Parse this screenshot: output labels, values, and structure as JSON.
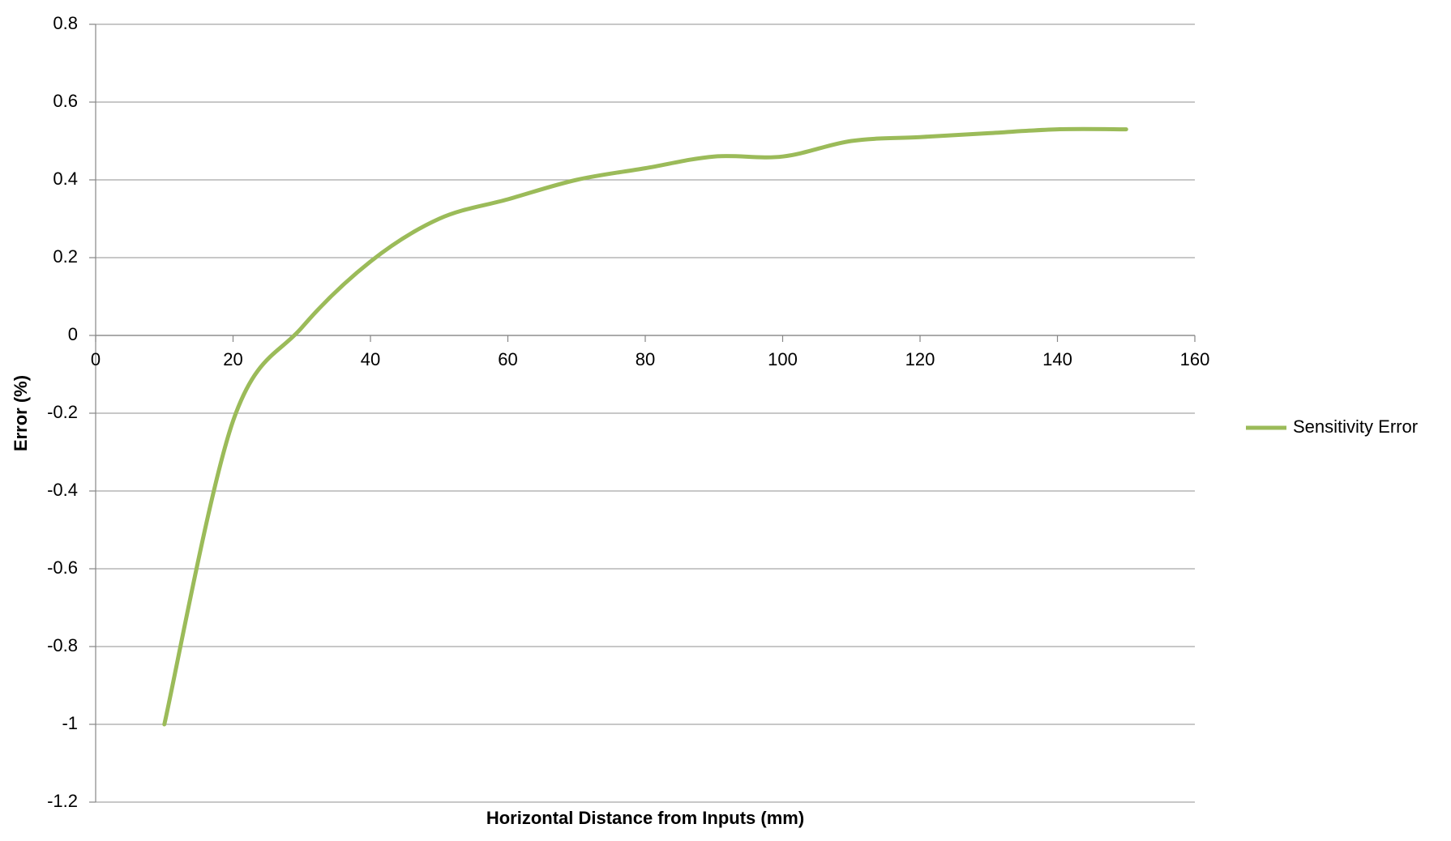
{
  "chart_data": {
    "type": "line",
    "x_label": "Horizontal Distance from Inputs (mm)",
    "y_label": "Error (%)",
    "x": [
      10,
      20,
      30,
      40,
      50,
      60,
      70,
      80,
      90,
      100,
      110,
      120,
      130,
      140,
      150
    ],
    "series": [
      {
        "name": "Sensitivity Error",
        "color": "#9bbb59",
        "values": [
          -1.0,
          -0.22,
          0.02,
          0.19,
          0.3,
          0.35,
          0.4,
          0.43,
          0.46,
          0.46,
          0.5,
          0.51,
          0.52,
          0.53,
          0.53
        ]
      }
    ],
    "xlim": [
      0,
      160
    ],
    "xticks": [
      0,
      20,
      40,
      60,
      80,
      100,
      120,
      140,
      160
    ],
    "ylim": [
      -1.2,
      0.8
    ],
    "yticks": [
      0.8,
      0.6,
      0.4,
      0.2,
      0,
      -0.2,
      -0.4,
      -0.6,
      -0.8,
      -1,
      -1.2
    ],
    "grid": true,
    "legend": "right"
  }
}
